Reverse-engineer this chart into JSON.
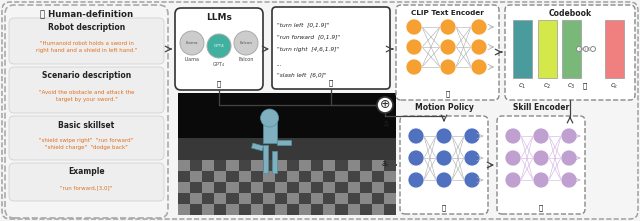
{
  "fig_width": 6.4,
  "fig_height": 2.21,
  "dpi": 100,
  "bg_color": "#f5f5f5",
  "sections": [
    {
      "title": "Robot description",
      "text": "\"Humanoid robot holds a sword in\nright hand and a shield in left hand.\""
    },
    {
      "title": "Scenario description",
      "text": "\"Avoid the obstacle and attack the\ntarget by your sword.\""
    },
    {
      "title": "Basic skillset",
      "text": "\"shield swipe right\"  \"run forward\"\n\"shield charge\"  \"dodge back\""
    },
    {
      "title": "Example",
      "text": "\"run forward,[3,0]\""
    }
  ],
  "prompt_lines": [
    [
      "turn left",
      "[0,1,9]"
    ],
    [
      "run forward",
      "[0,1,9]"
    ],
    [
      "turn right",
      "[4,6,1,9]"
    ],
    [
      "slash left",
      "[6,0]"
    ]
  ],
  "codebook_colors": [
    "#4a9b9b",
    "#d4e84a",
    "#7ab87a",
    "#f08080"
  ],
  "codebook_labels": [
    "1",
    "2",
    "3",
    "k"
  ],
  "node_color_orange": "#f5a030",
  "node_color_blue": "#5070c0",
  "node_color_purple": "#c0a0d0",
  "orange_color": "#e07020",
  "arrow_color": "#444444",
  "title_color": "#222222",
  "outer_dash_color": "#999999",
  "panel_dash_color": "#aaaaaa",
  "nn_edge_color": "#aaaaaa",
  "section_bg": "#eeeeee",
  "white": "#ffffff"
}
